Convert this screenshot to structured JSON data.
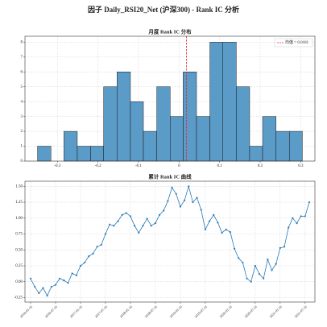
{
  "title": "因子 Daily_RSI20_Net (沪深300) - Rank IC 分析",
  "chart_data": [
    {
      "type": "histogram",
      "title": "月度 Rank IC 分布",
      "bins": [
        -0.349,
        -0.316,
        -0.284,
        -0.251,
        -0.218,
        -0.186,
        -0.153,
        -0.12,
        -0.088,
        -0.055,
        -0.022,
        0.01,
        0.043,
        0.076,
        0.108,
        0.141,
        0.174,
        0.206,
        0.239,
        0.272,
        0.304
      ],
      "counts": [
        1,
        0,
        2,
        1,
        1,
        5,
        6,
        4,
        2,
        5,
        3,
        6,
        3,
        8,
        8,
        5,
        1,
        3,
        2,
        2
      ],
      "color": "#5b9bc8",
      "mean_line": {
        "name": "均值 = 0.0181",
        "value": 0.0181,
        "color": "#e8202a"
      },
      "xlim": [
        -0.38,
        0.335
      ],
      "xticks": [
        -0.3,
        -0.2,
        -0.1,
        0.0,
        0.1,
        0.2,
        0.3
      ],
      "ylim": [
        0,
        8.4
      ],
      "yticks": [
        0,
        1,
        2,
        3,
        4,
        5,
        6,
        7,
        8
      ],
      "grid": true,
      "legend": "upper right"
    },
    {
      "type": "line",
      "title": "累计 Rank IC 曲线",
      "x": [
        "2016-01-31",
        "2016-02-29",
        "2016-03-31",
        "2016-04-30",
        "2016-05-31",
        "2016-06-30",
        "2016-07-31",
        "2016-08-31",
        "2016-09-30",
        "2016-10-31",
        "2016-11-30",
        "2016-12-31",
        "2017-01-31",
        "2017-02-28",
        "2017-03-31",
        "2017-04-30",
        "2017-05-31",
        "2017-06-30",
        "2017-07-31",
        "2017-08-31",
        "2017-09-30",
        "2017-10-31",
        "2017-11-30",
        "2017-12-31",
        "2018-01-31",
        "2018-02-28",
        "2018-03-31",
        "2018-04-30",
        "2018-05-31",
        "2018-06-30",
        "2018-07-31",
        "2018-08-31",
        "2018-09-30",
        "2018-10-31",
        "2018-11-30",
        "2018-12-31",
        "2019-01-31",
        "2019-02-28",
        "2019-03-31",
        "2019-04-30",
        "2019-05-31",
        "2019-06-30",
        "2019-07-31",
        "2019-08-31",
        "2019-09-30",
        "2019-10-31",
        "2019-11-30",
        "2019-12-31",
        "2020-01-31",
        "2020-02-29",
        "2020-03-31",
        "2020-04-30",
        "2020-05-31",
        "2020-06-30",
        "2020-07-31",
        "2020-08-31",
        "2020-09-30",
        "2020-10-31",
        "2020-11-30",
        "2020-12-31",
        "2021-01-31",
        "2021-02-28",
        "2021-03-31",
        "2021-04-30",
        "2021-05-31",
        "2021-06-30",
        "2021-07-31",
        "2021-08-31"
      ],
      "values": [
        0.05,
        -0.08,
        -0.18,
        -0.1,
        -0.22,
        -0.08,
        -0.05,
        0.05,
        0.02,
        -0.02,
        0.13,
        0.1,
        0.25,
        0.3,
        0.4,
        0.44,
        0.55,
        0.58,
        0.75,
        0.9,
        0.88,
        0.95,
        1.05,
        1.08,
        1.03,
        0.88,
        0.77,
        0.88,
        0.99,
        0.88,
        0.92,
        1.05,
        1.12,
        1.27,
        1.48,
        1.38,
        1.18,
        1.28,
        1.5,
        1.25,
        1.32,
        1.13,
        0.82,
        0.95,
        1.05,
        0.93,
        0.77,
        0.82,
        0.78,
        0.52,
        0.37,
        0.3,
        0.05,
        0.0,
        0.25,
        0.12,
        0.05,
        0.35,
        0.18,
        0.28,
        0.53,
        0.55,
        0.85,
        1.0,
        0.92,
        1.03,
        1.03,
        1.25
      ],
      "color": "#2b7bb9",
      "xticks": [
        "2016-01-31",
        "2016-07-31",
        "2017-01-31",
        "2017-07-31",
        "2018-01-31",
        "2018-07-31",
        "2019-01-31",
        "2019-07-31",
        "2020-01-31",
        "2020-07-31",
        "2021-01-31",
        "2021-07-31"
      ],
      "ylim": [
        -0.32,
        1.58
      ],
      "yticks": [
        {
          "value": -0.25,
          "label": "-0.25"
        },
        {
          "value": 0,
          "label": "0.00"
        },
        {
          "value": 0.25,
          "label": "0.25"
        },
        {
          "value": 0.5,
          "label": "0.50"
        },
        {
          "value": 0.75,
          "label": "0.75"
        },
        {
          "value": 1,
          "label": "1.00"
        },
        {
          "value": 1.25,
          "label": "1.25"
        },
        {
          "value": 1.5,
          "label": "1.50"
        }
      ],
      "grid": true
    }
  ]
}
